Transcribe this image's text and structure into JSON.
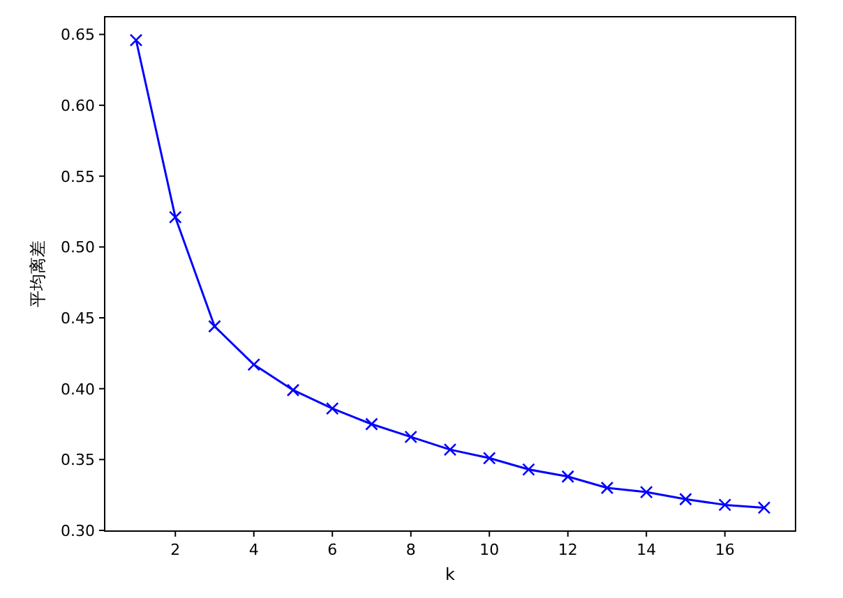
{
  "chart_data": {
    "type": "line",
    "xlabel": "k",
    "ylabel": "平均离差",
    "x": [
      1,
      2,
      3,
      4,
      5,
      6,
      7,
      8,
      9,
      10,
      11,
      12,
      13,
      14,
      15,
      16,
      17
    ],
    "series": [
      {
        "color": "#0000ff",
        "values": [
          0.646,
          0.521,
          0.444,
          0.417,
          0.399,
          0.386,
          0.375,
          0.366,
          0.357,
          0.351,
          0.343,
          0.338,
          0.33,
          0.327,
          0.322,
          0.318,
          0.316
        ]
      }
    ],
    "marker": "cross",
    "line_style": "solid",
    "grid": false,
    "xlim": [
      0.2,
      17.8
    ],
    "xticks": [
      2,
      4,
      6,
      8,
      10,
      12,
      14,
      16
    ],
    "ylim": [
      0.2995,
      0.6625
    ],
    "yticks": [
      {
        "value": 0.3,
        "label": "0.30"
      },
      {
        "value": 0.35,
        "label": "0.35"
      },
      {
        "value": 0.4,
        "label": "0.40"
      },
      {
        "value": 0.45,
        "label": "0.45"
      },
      {
        "value": 0.5,
        "label": "0.50"
      },
      {
        "value": 0.55,
        "label": "0.55"
      },
      {
        "value": 0.6,
        "label": "0.60"
      },
      {
        "value": 0.65,
        "label": "0.65"
      }
    ]
  }
}
